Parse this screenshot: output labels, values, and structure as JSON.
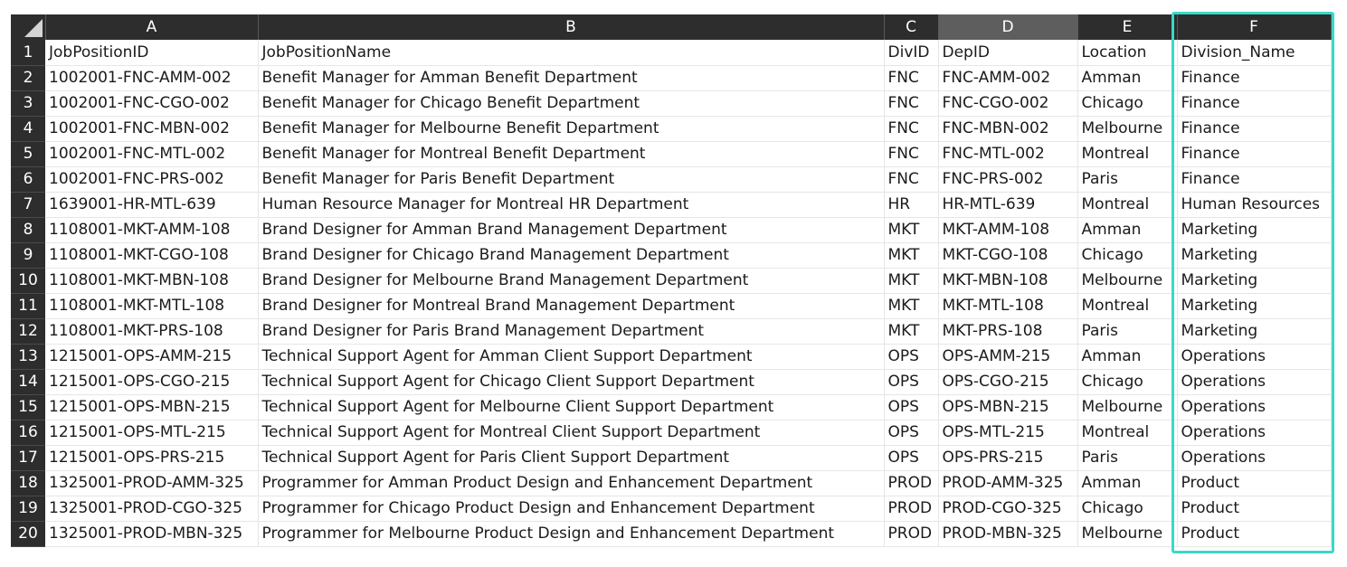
{
  "columns": [
    "A",
    "B",
    "C",
    "D",
    "E",
    "F"
  ],
  "selected_column": "D",
  "highlighted_column": "F",
  "rows": [
    {
      "num": "1",
      "cells": [
        "JobPositionID",
        "JobPositionName",
        "DivID",
        "DepID",
        "Location",
        "Division_Name"
      ]
    },
    {
      "num": "2",
      "cells": [
        "1002001-FNC-AMM-002",
        "Benefit Manager for Amman Benefit Department",
        "FNC",
        "FNC-AMM-002",
        "Amman",
        "Finance"
      ]
    },
    {
      "num": "3",
      "cells": [
        "1002001-FNC-CGO-002",
        "Benefit Manager for Chicago Benefit Department",
        "FNC",
        "FNC-CGO-002",
        "Chicago",
        "Finance"
      ]
    },
    {
      "num": "4",
      "cells": [
        "1002001-FNC-MBN-002",
        "Benefit Manager for Melbourne Benefit Department",
        "FNC",
        "FNC-MBN-002",
        "Melbourne",
        "Finance"
      ]
    },
    {
      "num": "5",
      "cells": [
        "1002001-FNC-MTL-002",
        "Benefit Manager for Montreal Benefit Department",
        "FNC",
        "FNC-MTL-002",
        "Montreal",
        "Finance"
      ]
    },
    {
      "num": "6",
      "cells": [
        "1002001-FNC-PRS-002",
        "Benefit Manager for Paris Benefit Department",
        "FNC",
        "FNC-PRS-002",
        "Paris",
        "Finance"
      ]
    },
    {
      "num": "7",
      "cells": [
        "1639001-HR-MTL-639",
        "Human Resource Manager for Montreal HR Department",
        "HR",
        "HR-MTL-639",
        "Montreal",
        "Human Resources"
      ]
    },
    {
      "num": "8",
      "cells": [
        "1108001-MKT-AMM-108",
        "Brand Designer for Amman Brand Management Department",
        "MKT",
        "MKT-AMM-108",
        "Amman",
        "Marketing"
      ]
    },
    {
      "num": "9",
      "cells": [
        "1108001-MKT-CGO-108",
        "Brand Designer for Chicago Brand Management Department",
        "MKT",
        "MKT-CGO-108",
        "Chicago",
        "Marketing"
      ]
    },
    {
      "num": "10",
      "cells": [
        "1108001-MKT-MBN-108",
        "Brand Designer for Melbourne Brand Management Department",
        "MKT",
        "MKT-MBN-108",
        "Melbourne",
        "Marketing"
      ]
    },
    {
      "num": "11",
      "cells": [
        "1108001-MKT-MTL-108",
        "Brand Designer for Montreal Brand Management Department",
        "MKT",
        "MKT-MTL-108",
        "Montreal",
        "Marketing"
      ]
    },
    {
      "num": "12",
      "cells": [
        "1108001-MKT-PRS-108",
        "Brand Designer for Paris Brand Management Department",
        "MKT",
        "MKT-PRS-108",
        "Paris",
        "Marketing"
      ]
    },
    {
      "num": "13",
      "cells": [
        "1215001-OPS-AMM-215",
        "Technical Support Agent for Amman Client Support Department",
        "OPS",
        "OPS-AMM-215",
        "Amman",
        "Operations"
      ]
    },
    {
      "num": "14",
      "cells": [
        "1215001-OPS-CGO-215",
        "Technical Support Agent for Chicago Client Support Department",
        "OPS",
        "OPS-CGO-215",
        "Chicago",
        "Operations"
      ]
    },
    {
      "num": "15",
      "cells": [
        "1215001-OPS-MBN-215",
        "Technical Support Agent for Melbourne Client Support Department",
        "OPS",
        "OPS-MBN-215",
        "Melbourne",
        "Operations"
      ]
    },
    {
      "num": "16",
      "cells": [
        "1215001-OPS-MTL-215",
        "Technical Support Agent for Montreal Client Support Department",
        "OPS",
        "OPS-MTL-215",
        "Montreal",
        "Operations"
      ]
    },
    {
      "num": "17",
      "cells": [
        "1215001-OPS-PRS-215",
        "Technical Support Agent for Paris Client Support Department",
        "OPS",
        "OPS-PRS-215",
        "Paris",
        "Operations"
      ]
    },
    {
      "num": "18",
      "cells": [
        "1325001-PROD-AMM-325",
        "Programmer for Amman Product Design and Enhancement Department",
        "PROD",
        "PROD-AMM-325",
        "Amman",
        "Product"
      ]
    },
    {
      "num": "19",
      "cells": [
        "1325001-PROD-CGO-325",
        "Programmer for Chicago Product Design and Enhancement Department",
        "PROD",
        "PROD-CGO-325",
        "Chicago",
        "Product"
      ]
    },
    {
      "num": "20",
      "cells": [
        "1325001-PROD-MBN-325",
        "Programmer for Melbourne Product Design and Enhancement Department",
        "PROD",
        "PROD-MBN-325",
        "Melbourne",
        "Product"
      ]
    }
  ],
  "colors": {
    "header_bg": "#2d2d2d",
    "selected_header_bg": "#5e5e5e",
    "highlight_border": "#3ad9c8"
  }
}
